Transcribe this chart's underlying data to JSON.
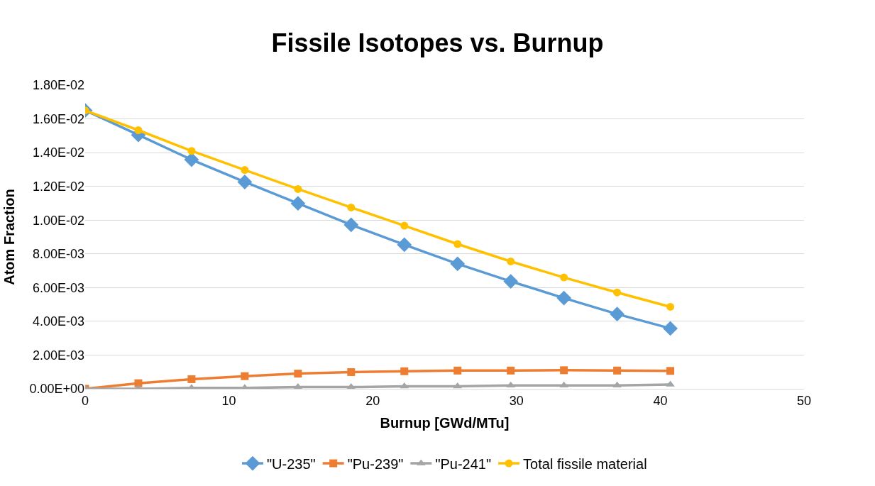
{
  "chart_data": {
    "type": "line",
    "title": "Fissile Isotopes vs. Burnup",
    "xlabel": "Burnup [GWd/MTu]",
    "ylabel": "Atom Fraction",
    "x": [
      0,
      3.7,
      7.4,
      11.1,
      14.8,
      18.5,
      22.2,
      25.9,
      29.6,
      33.3,
      37.0,
      40.7
    ],
    "series": [
      {
        "name": "\"U-235\"",
        "color": "#5b9bd5",
        "marker": "diamond",
        "values": [
          0.0165,
          0.01505,
          0.01358,
          0.01226,
          0.01099,
          0.00972,
          0.00854,
          0.00741,
          0.00637,
          0.00538,
          0.00443,
          0.00358
        ]
      },
      {
        "name": "\"Pu-239\"",
        "color": "#ed7d31",
        "marker": "square",
        "values": [
          0,
          0.00033,
          0.00057,
          0.00075,
          0.0009,
          0.00099,
          0.00104,
          0.00108,
          0.00108,
          0.0011,
          0.00108,
          0.00106
        ]
      },
      {
        "name": "\"Pu-241\"",
        "color": "#a5a5a5",
        "marker": "triangle",
        "values": [
          0,
          0,
          5e-05,
          5e-05,
          0.0001,
          0.0001,
          0.00015,
          0.00015,
          0.0002,
          0.0002,
          0.0002,
          0.00025
        ]
      },
      {
        "name": "Total fissile material",
        "color": "#ffc000",
        "marker": "circle",
        "values": [
          0.0165,
          0.01533,
          0.0141,
          0.01297,
          0.01184,
          0.01075,
          0.00967,
          0.00858,
          0.00755,
          0.0066,
          0.00571,
          0.00486
        ]
      }
    ],
    "xlim": [
      0,
      50
    ],
    "xticks": [
      0,
      10,
      20,
      30,
      40,
      50
    ],
    "ylim": [
      0,
      0.018
    ],
    "yticks": [
      {
        "value": 0,
        "label": "0.00E+00"
      },
      {
        "value": 0.002,
        "label": "2.00E-03"
      },
      {
        "value": 0.004,
        "label": "4.00E-03"
      },
      {
        "value": 0.006,
        "label": "6.00E-03"
      },
      {
        "value": 0.008,
        "label": "8.00E-03"
      },
      {
        "value": 0.01,
        "label": "1.00E-02"
      },
      {
        "value": 0.012,
        "label": "1.20E-02"
      },
      {
        "value": 0.014,
        "label": "1.40E-02"
      },
      {
        "value": 0.016,
        "label": "1.60E-02"
      },
      {
        "value": 0.018,
        "label": "1.80E-02"
      }
    ],
    "grid": "y",
    "legend": "bottom",
    "line_style": "solid"
  }
}
